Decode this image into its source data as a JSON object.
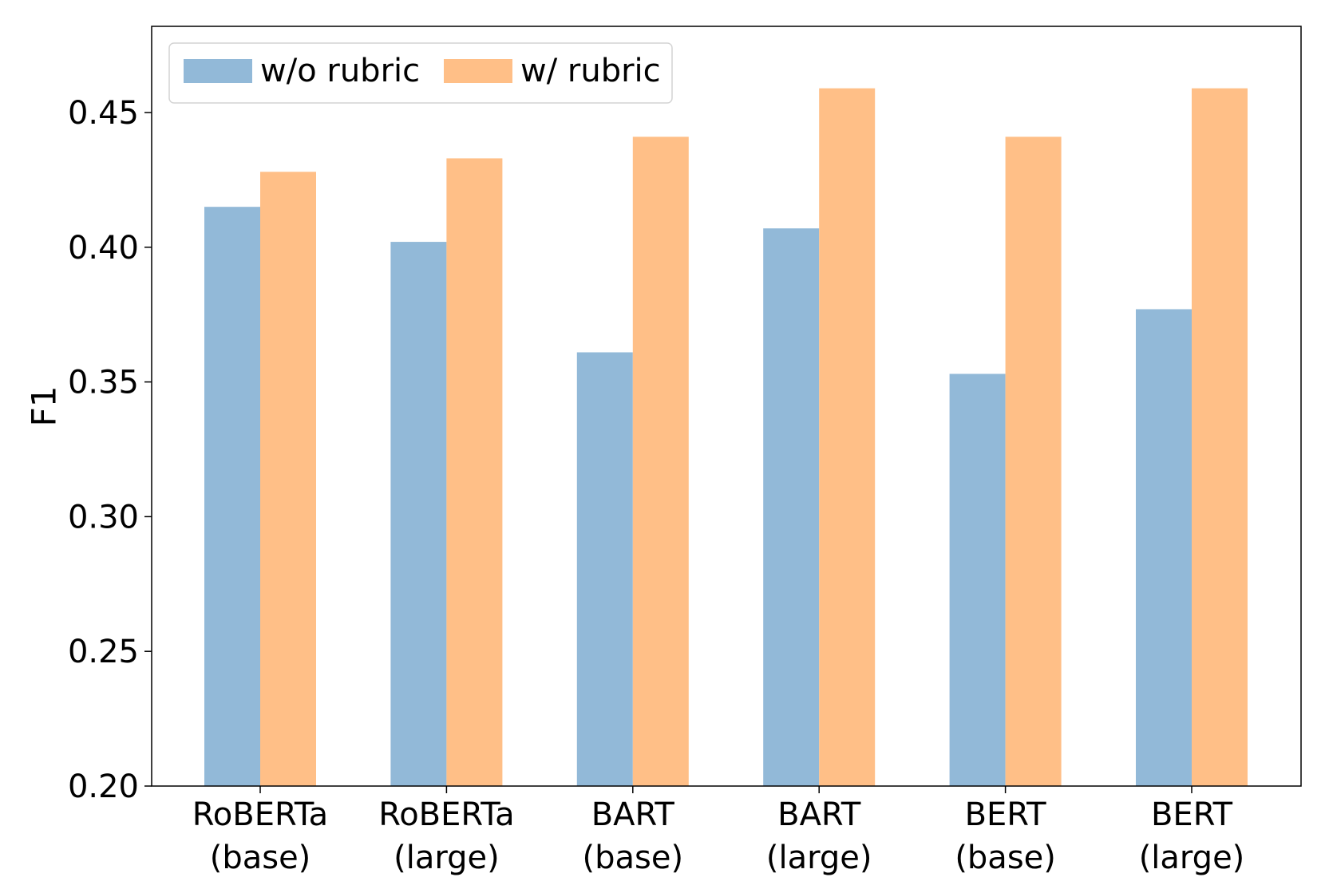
{
  "chart_data": {
    "type": "bar",
    "categories": [
      [
        "RoBERTa",
        "(base)"
      ],
      [
        "RoBERTa",
        "(large)"
      ],
      [
        "BART",
        "(base)"
      ],
      [
        "BART",
        "(large)"
      ],
      [
        "BERT",
        "(base)"
      ],
      [
        "BERT",
        "(large)"
      ]
    ],
    "series": [
      {
        "name": "w/o rubric",
        "color": "#92b9d8",
        "values": [
          0.415,
          0.402,
          0.361,
          0.407,
          0.353,
          0.377
        ]
      },
      {
        "name": "w/ rubric",
        "color": "#ffbf87",
        "values": [
          0.428,
          0.433,
          0.441,
          0.459,
          0.441,
          0.459
        ]
      }
    ],
    "title": "",
    "xlabel": "",
    "ylabel": "F1",
    "ylim": [
      0.2,
      0.482
    ],
    "yticks": [
      "0.20",
      "0.25",
      "0.30",
      "0.35",
      "0.40",
      "0.45"
    ],
    "grid": false,
    "legend_position": "top-left"
  }
}
